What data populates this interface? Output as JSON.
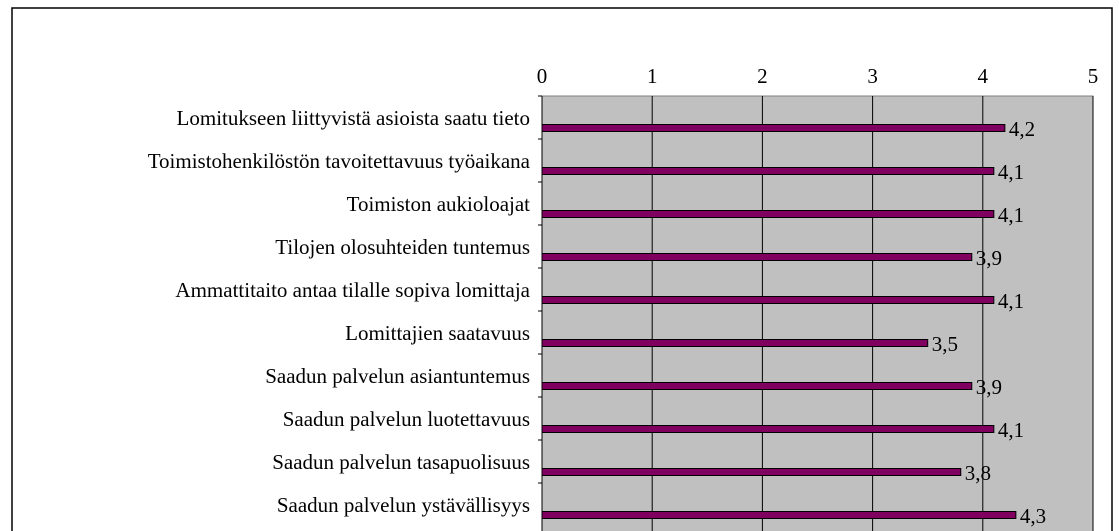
{
  "chart_data": {
    "type": "bar",
    "categories": [
      "Lomitukseen liittyvistä asioista saatu tieto",
      "Toimistohenkilöstön tavoitettavuus työaikana",
      "Toimiston aukioloajat",
      "Tilojen olosuhteiden tuntemus",
      "Ammattitaito antaa tilalle sopiva lomittaja",
      "Lomittajien saatavuus",
      "Saadun palvelun asiantuntemus",
      "Saadun palvelun luotettavuus",
      "Saadun palvelun tasapuolisuus",
      "Saadun palvelun ystävällisyys"
    ],
    "values": [
      4.2,
      4.1,
      4.1,
      3.9,
      4.1,
      3.5,
      3.9,
      4.1,
      3.8,
      4.3
    ],
    "value_labels": [
      "4,2",
      "4,1",
      "4,1",
      "3,9",
      "4,1",
      "3,5",
      "3,9",
      "4,1",
      "3,8",
      "4,3"
    ],
    "color": "#800060",
    "xlim": [
      0,
      5
    ],
    "xticks": [
      0,
      1,
      2,
      3,
      4,
      5
    ],
    "grid": true
  }
}
